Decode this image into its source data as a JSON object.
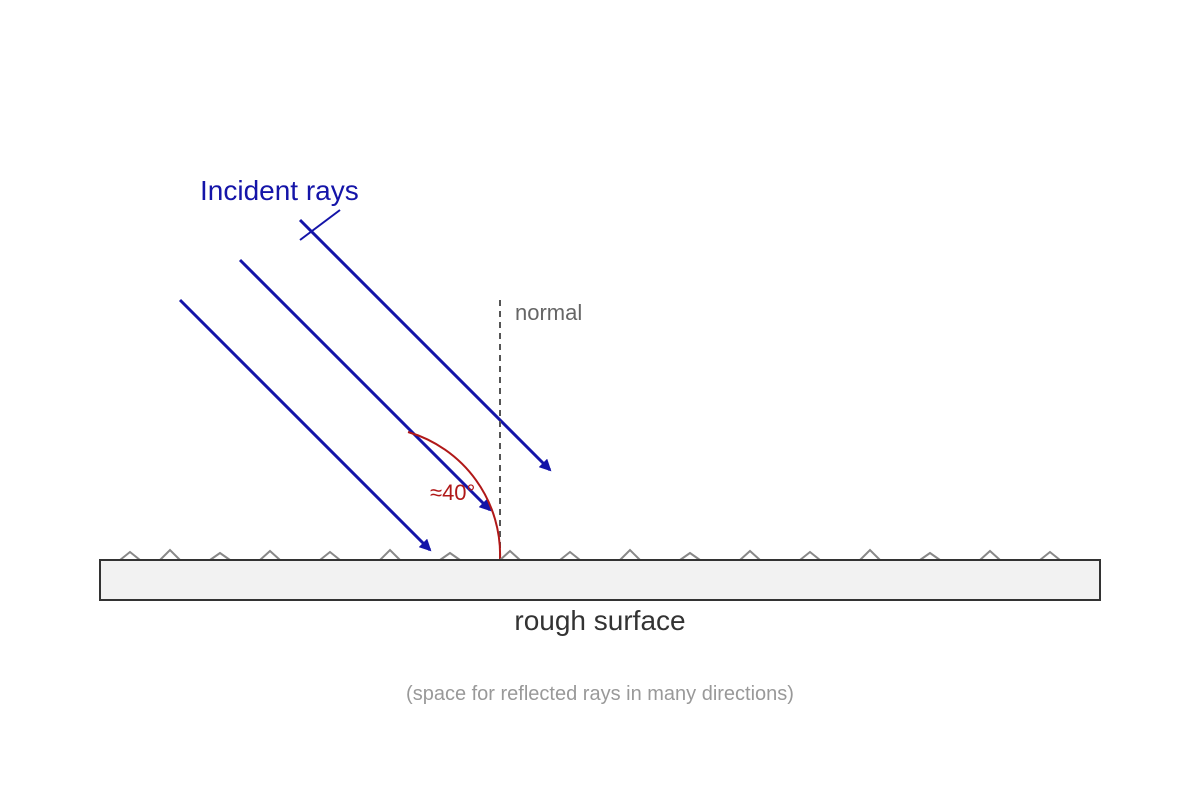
{
  "diagram": {
    "labels": {
      "incident_rays": "Incident rays",
      "normal": "normal",
      "angle": "≈40°",
      "surface": "rough surface",
      "note": "(space for reflected rays in many directions)"
    },
    "colors": {
      "ray": "#1414a8",
      "angle": "#b01818",
      "normal": "#555555",
      "surface_fill": "#f2f2f2",
      "surface_stroke": "#333333",
      "bumps": "#888888",
      "note": "#999999"
    },
    "ray_count": 3
  }
}
